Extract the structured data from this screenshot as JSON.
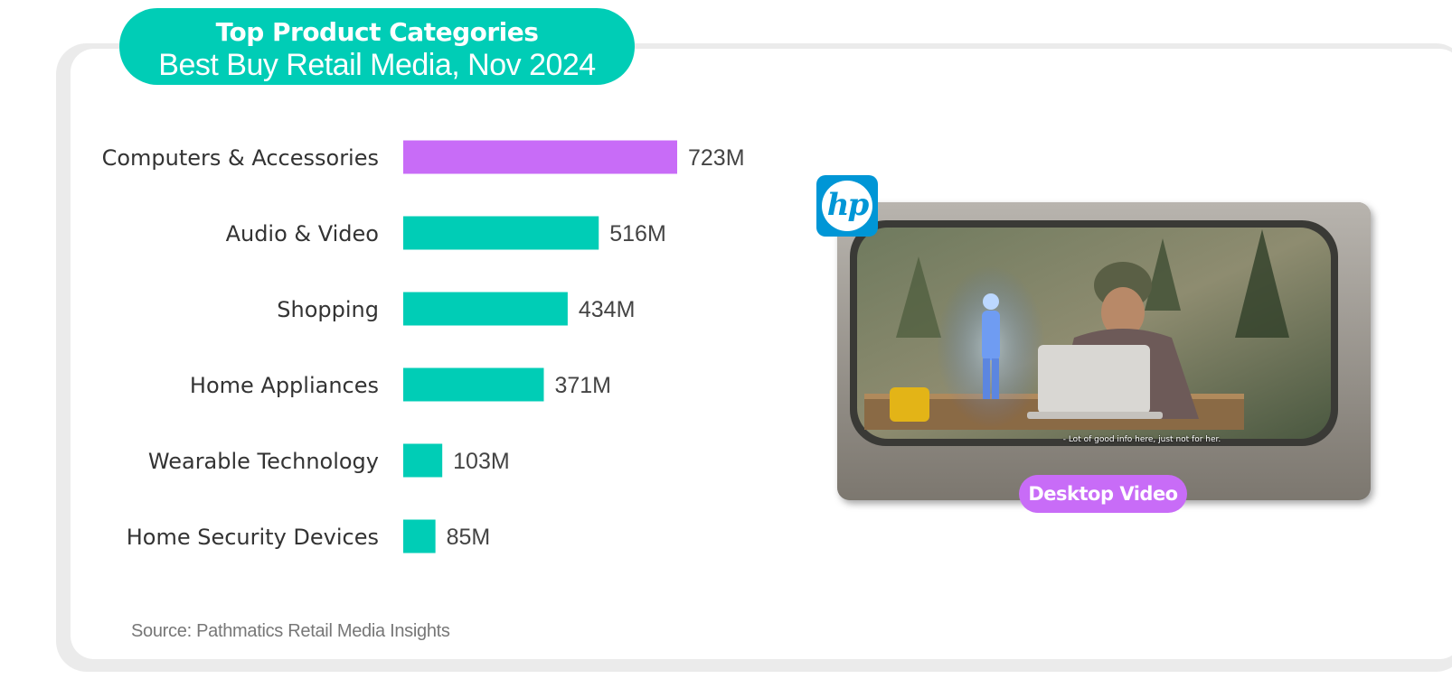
{
  "header": {
    "title": "Top Product Categories",
    "subtitle": "Best Buy Retail Media, Nov 2024"
  },
  "chart_data": {
    "type": "bar",
    "orientation": "horizontal",
    "categories": [
      "Computers & Accessories",
      "Audio & Video",
      "Shopping",
      "Home Appliances",
      "Wearable Technology",
      "Home Security Devices"
    ],
    "values": [
      723,
      516,
      434,
      371,
      103,
      85
    ],
    "value_labels": [
      "723M",
      "516M",
      "434M",
      "371M",
      "103M",
      "85M"
    ],
    "highlight_index": 0,
    "colors": {
      "highlight": "#c86cf7",
      "default": "#00cdb6"
    },
    "grid": false,
    "legend": "none"
  },
  "source": "Source: Pathmatics Retail Media Insights",
  "ad_creative": {
    "brand_icon": "hp-logo-icon",
    "caption": "- Lot of good info here, just not for her.",
    "format_label": "Desktop Video"
  },
  "colors": {
    "accent": "#00cdb6",
    "highlight": "#c86cf7",
    "hp_blue": "#0096d6"
  }
}
